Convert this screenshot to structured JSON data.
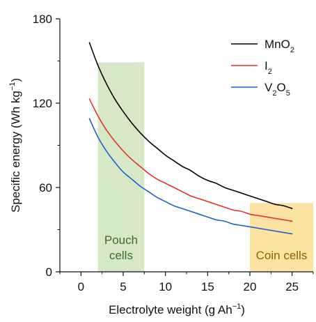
{
  "chart_data": {
    "type": "line",
    "xlabel": "Electrolyte weight (g Ah",
    "xlabel_sup": "−1",
    "xlabel_close": ")",
    "ylabel": "Specific energy (Wh kg",
    "ylabel_sup": "−1",
    "ylabel_close": ")",
    "xlim": [
      -2.5,
      27.5
    ],
    "ylim": [
      0,
      180
    ],
    "xticks": [
      0,
      5,
      10,
      15,
      20,
      25
    ],
    "yticks": [
      0,
      60,
      120,
      180
    ],
    "grid": false,
    "legend": "top-right",
    "series": [
      {
        "name_parts": [
          {
            "t": "MnO"
          },
          {
            "t": "2",
            "sub": true
          }
        ],
        "color": "#000000",
        "x": [
          1,
          2,
          3,
          4,
          5,
          6,
          7,
          8,
          9,
          10,
          11,
          12,
          13,
          14,
          15,
          16,
          17,
          18,
          19,
          20,
          21,
          22,
          23,
          24,
          25
        ],
        "values": [
          163,
          147,
          134,
          123,
          114,
          106,
          99,
          93,
          88,
          83,
          79,
          75,
          72,
          68,
          65,
          63,
          60,
          58,
          56,
          54,
          52,
          50,
          48,
          47,
          45
        ]
      },
      {
        "name_parts": [
          {
            "t": "I"
          },
          {
            "t": "2",
            "sub": true
          }
        ],
        "color": "#e8302a",
        "x": [
          1,
          2,
          3,
          4,
          5,
          6,
          7,
          8,
          9,
          10,
          11,
          12,
          13,
          14,
          15,
          16,
          17,
          18,
          19,
          20,
          21,
          22,
          23,
          24,
          25
        ],
        "values": [
          123,
          111,
          101,
          93,
          86,
          80,
          75,
          70,
          66,
          63,
          60,
          57,
          54,
          52,
          50,
          48,
          46,
          44,
          43,
          41,
          40,
          39,
          38,
          37,
          36
        ]
      },
      {
        "name_parts": [
          {
            "t": "V"
          },
          {
            "t": "2",
            "sub": true
          },
          {
            "t": "O"
          },
          {
            "t": "5",
            "sub": true
          }
        ],
        "color": "#1f5fcc",
        "x": [
          1,
          2,
          3,
          4,
          5,
          6,
          7,
          8,
          9,
          10,
          11,
          12,
          13,
          14,
          15,
          16,
          17,
          18,
          19,
          20,
          21,
          22,
          23,
          24,
          25
        ],
        "values": [
          109,
          96,
          86,
          78,
          71,
          66,
          61,
          57,
          53,
          50,
          47,
          45,
          43,
          41,
          39,
          37,
          36,
          34,
          33,
          32,
          31,
          30,
          29,
          28,
          27
        ]
      }
    ],
    "regions": [
      {
        "label_lines": [
          "Pouch",
          "cells"
        ],
        "x_range": [
          2,
          7.5
        ],
        "y_range": [
          0,
          149
        ],
        "fill": "#d6e8c6",
        "text_color": "#3d6b2c"
      },
      {
        "label_lines": [
          "Coin cells"
        ],
        "x_range": [
          20,
          27.5
        ],
        "y_range": [
          0,
          49
        ],
        "fill": "#fde3a2",
        "text_color": "#8a6400"
      }
    ]
  }
}
